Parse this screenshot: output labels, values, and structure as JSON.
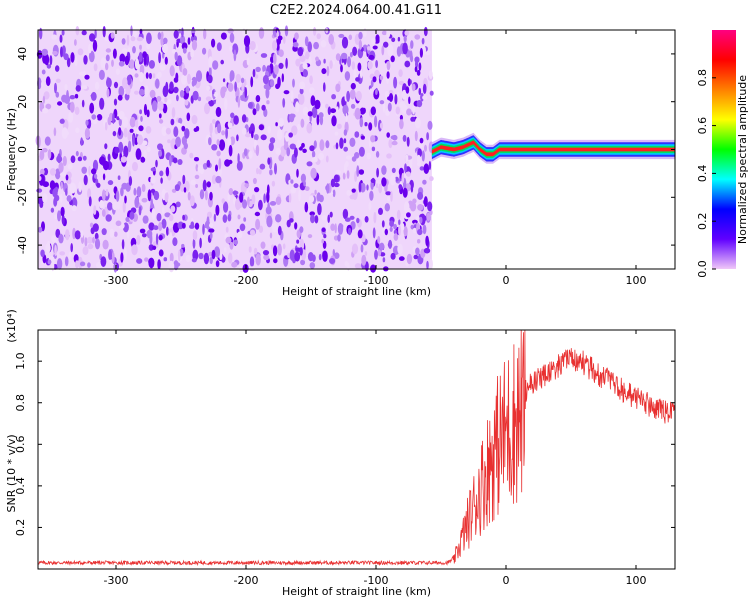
{
  "title": "C2E2.2024.064.00.41.G11",
  "chart_data": [
    {
      "type": "heatmap",
      "xlabel": "Height of straight line (km)",
      "ylabel": "Frequency (Hz)",
      "xlim": [
        -360,
        130
      ],
      "ylim": [
        -50,
        50
      ],
      "x_ticks": [
        -300,
        -200,
        -100,
        0,
        100
      ],
      "y_ticks": [
        -40,
        -20,
        0,
        20,
        40
      ],
      "noise_region_x": [
        -360,
        -57
      ],
      "signal_band": {
        "x_start": -57,
        "x_end": 130,
        "center_freq_points": [
          [
            -57,
            -1
          ],
          [
            -50,
            1
          ],
          [
            -40,
            0
          ],
          [
            -33,
            1
          ],
          [
            -25,
            3
          ],
          [
            -20,
            0
          ],
          [
            -15,
            -2
          ],
          [
            -10,
            -2
          ],
          [
            -5,
            0
          ],
          [
            5,
            0
          ],
          [
            50,
            0
          ],
          [
            130,
            0
          ]
        ],
        "half_width_hz": 4
      },
      "grid": false
    },
    {
      "type": "colorbar",
      "label": "Normalized spectral amplitude",
      "range": [
        0.0,
        1.0
      ],
      "ticks": [
        0.0,
        0.2,
        0.4,
        0.6,
        0.8
      ],
      "colormap": [
        "#f0c8f8",
        "#6000ff",
        "#0000ff",
        "#00ffff",
        "#00ff00",
        "#ffff00",
        "#ff8000",
        "#ff0000",
        "#ff0080"
      ]
    },
    {
      "type": "line",
      "xlabel": "Height of straight line (km)",
      "ylabel": "SNR (10 * v/v)",
      "y_multiplier": "(x10⁴)",
      "xlim": [
        -360,
        130
      ],
      "ylim": [
        0,
        1.15
      ],
      "x_ticks": [
        -300,
        -200,
        -100,
        0,
        100
      ],
      "y_ticks": [
        0.2,
        0.4,
        0.6,
        0.8,
        1.0
      ],
      "series": [
        {
          "color": "#e83030",
          "envelope_x": [
            -360,
            -300,
            -200,
            -100,
            -45,
            -40,
            -35,
            -30,
            -25,
            -20,
            -15,
            -10,
            -5,
            0,
            10,
            20,
            30,
            40,
            50,
            55,
            60,
            70,
            80,
            90,
            100,
            110,
            120,
            130
          ],
          "envelope_y": [
            0.03,
            0.03,
            0.03,
            0.03,
            0.03,
            0.05,
            0.15,
            0.25,
            0.35,
            0.45,
            0.55,
            0.65,
            0.72,
            0.78,
            0.88,
            0.95,
            1.0,
            1.04,
            1.07,
            1.07,
            1.05,
            1.0,
            0.96,
            0.92,
            0.88,
            0.85,
            0.82,
            0.8
          ]
        }
      ],
      "grid": false
    }
  ]
}
